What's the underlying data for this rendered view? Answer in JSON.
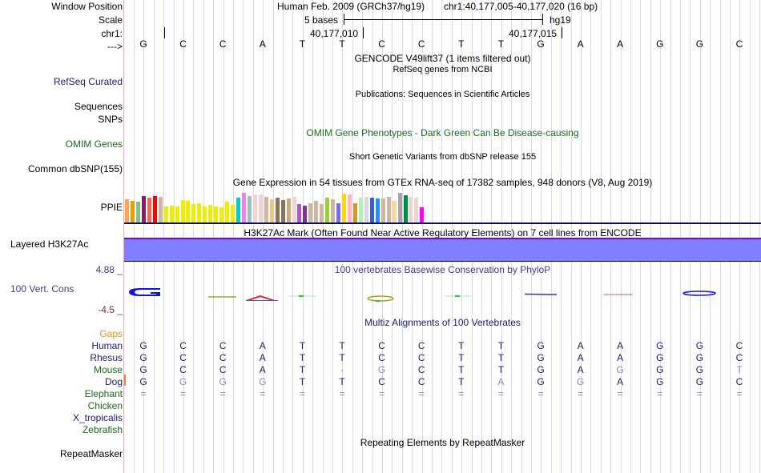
{
  "labels": {
    "window_position": "Window Position",
    "scale": "Scale",
    "chrom": "chr1:",
    "strand": "--->",
    "refseq_curated": "RefSeq Curated",
    "sequences": "Sequences",
    "snps": "SNPs",
    "omim_genes": "OMIM Genes",
    "common_dbsnp": "Common dbSNP(155)",
    "ppie": "PPIE",
    "layered_h3k27ac": "Layered H3K27Ac",
    "cons_max": "4.88 _",
    "cons_label": "100 Vert. Cons",
    "cons_min": "-4.5 _",
    "gaps": "Gaps",
    "repeatmasker": "RepeatMasker"
  },
  "header": {
    "assembly": "Human Feb. 2009 (GRCh37/hg19)",
    "position": "chr1:40,177,005-40,177,020 (16 bp)",
    "scale_text": "5 bases",
    "scale_db": "hg19",
    "coord1": "40,177,010",
    "coord2": "40,177,015"
  },
  "sequence": [
    "G",
    "C",
    "C",
    "A",
    "T",
    "T",
    "C",
    "C",
    "T",
    "T",
    "G",
    "A",
    "A",
    "G",
    "G",
    "C"
  ],
  "tracks": {
    "gencode": "GENCODE V49lift37 (1 items filtered out)",
    "refseq": "RefSeq genes from NCBI",
    "publications": "Publications: Sequences in Scientific Articles",
    "omim": "OMIM Gene Phenotypes - Dark Green Can Be Disease-causing",
    "dbsnp": "Short Genetic Variants from dbSNP release 155",
    "gtex": "Gene Expression in 54 tissues from GTEx RNA-seq of 17382 samples, 948 donors (V8, Aug 2019)",
    "h3k27ac": "H3K27Ac Mark (Often Found Near Active Regulatory Elements) on 7 cell lines from ENCODE",
    "phylop": "100 vertebrates Basewise Conservation by PhyloP",
    "multiz": "Multiz Alignments of 100 Vertebrates",
    "repeatmasker": "Repeating Elements by RepeatMasker"
  },
  "gtex_bars": [
    {
      "color": "#ffa54f",
      "level": 0.8
    },
    {
      "color": "#ee9a00",
      "level": 0.74
    },
    {
      "color": "#8fbc8f",
      "level": 0.71
    },
    {
      "color": "#8b1c62",
      "level": 0.9
    },
    {
      "color": "#ee6a50",
      "level": 0.83
    },
    {
      "color": "#ff0000",
      "level": 0.9
    },
    {
      "color": "#cdb79e",
      "level": 0.86
    },
    {
      "color": "#eeee00",
      "level": 0.55
    },
    {
      "color": "#eeee00",
      "level": 0.57
    },
    {
      "color": "#eeee00",
      "level": 0.55
    },
    {
      "color": "#eeee00",
      "level": 0.77
    },
    {
      "color": "#eeee00",
      "level": 0.74
    },
    {
      "color": "#eeee00",
      "level": 0.64
    },
    {
      "color": "#eeee00",
      "level": 0.67
    },
    {
      "color": "#eeee00",
      "level": 0.55
    },
    {
      "color": "#eeee00",
      "level": 0.6
    },
    {
      "color": "#eeee00",
      "level": 0.55
    },
    {
      "color": "#eeee00",
      "level": 0.52
    },
    {
      "color": "#eeee00",
      "level": 0.71
    },
    {
      "color": "#eeee00",
      "level": 0.6
    },
    {
      "color": "#00cdcd",
      "level": 0.83
    },
    {
      "color": "#ee82ee",
      "level": 1.0
    },
    {
      "color": "#9ac0cd",
      "level": 0.9
    },
    {
      "color": "#eed5d2",
      "level": 0.95
    },
    {
      "color": "#eed5d2",
      "level": 0.95
    },
    {
      "color": "#cdb79e",
      "level": 0.86
    },
    {
      "color": "#f4c285",
      "level": 0.8
    },
    {
      "color": "#8b7355",
      "level": 0.83
    },
    {
      "color": "#8b7355",
      "level": 0.77
    },
    {
      "color": "#cdaa7d",
      "level": 0.81
    },
    {
      "color": "#eed5d2",
      "level": 0.88
    },
    {
      "color": "#b452cd",
      "level": 0.64
    },
    {
      "color": "#7a378b",
      "level": 0.57
    },
    {
      "color": "#cdb79e",
      "level": 0.67
    },
    {
      "color": "#cdb79e",
      "level": 0.74
    },
    {
      "color": "#cdb79e",
      "level": 0.64
    },
    {
      "color": "#9acd32",
      "level": 0.83
    },
    {
      "color": "#cdb79e",
      "level": 0.78
    },
    {
      "color": "#7b68ee",
      "level": 0.67
    },
    {
      "color": "#ffd700",
      "level": 0.97
    },
    {
      "color": "#ffb6c1",
      "level": 0.95
    },
    {
      "color": "#cd9b1d",
      "level": 0.67
    },
    {
      "color": "#b4eeb4",
      "level": 0.83
    },
    {
      "color": "#d9d9d9",
      "level": 0.86
    },
    {
      "color": "#3a5fcd",
      "level": 0.84
    },
    {
      "color": "#1e90ff",
      "level": 0.81
    },
    {
      "color": "#cdb79e",
      "level": 0.81
    },
    {
      "color": "#cdb79e",
      "level": 0.86
    },
    {
      "color": "#ffd39b",
      "level": 0.74
    },
    {
      "color": "#a6a6a6",
      "level": 1.0
    },
    {
      "color": "#008b45",
      "level": 0.91
    },
    {
      "color": "#eed5d2",
      "level": 0.88
    },
    {
      "color": "#eed5d2",
      "level": 0.84
    },
    {
      "color": "#ff00ff",
      "level": 0.52
    }
  ],
  "alignment": {
    "rows": [
      {
        "species": "Human",
        "color": "navy",
        "bases": [
          "G",
          "C",
          "C",
          "A",
          "T",
          "T",
          "C",
          "C",
          "T",
          "T",
          "G",
          "A",
          "A",
          "G",
          "G",
          "C"
        ],
        "dim": []
      },
      {
        "species": "Rhesus",
        "color": "navy",
        "bases": [
          "G",
          "C",
          "C",
          "A",
          "T",
          "T",
          "C",
          "C",
          "T",
          "T",
          "G",
          "A",
          "A",
          "G",
          "G",
          "C"
        ],
        "dim": []
      },
      {
        "species": "Mouse",
        "color": "green",
        "bases": [
          "G",
          "C",
          "C",
          "A",
          "T",
          "-",
          "G",
          "C",
          "T",
          "T",
          "G",
          "A",
          "G",
          "G",
          "G",
          "T"
        ],
        "dim": [
          5,
          6,
          12,
          15
        ]
      },
      {
        "species": "Dog",
        "color": "navy",
        "bases": [
          "G",
          "G",
          "G",
          "G",
          "T",
          "T",
          "C",
          "C",
          "T",
          "A",
          "G",
          "G",
          "A",
          "G",
          "G",
          "C"
        ],
        "dim": [
          1,
          2,
          3,
          9,
          11
        ]
      },
      {
        "species": "Elephant",
        "color": "green",
        "bases": [
          "=",
          "=",
          "=",
          "=",
          "=",
          "=",
          "=",
          "=",
          "=",
          "=",
          "=",
          "=",
          "=",
          "=",
          "=",
          "="
        ],
        "dim": "all"
      },
      {
        "species": "Chicken",
        "color": "green",
        "bases": [],
        "dim": []
      },
      {
        "species": "X_tropicalis",
        "color": "navy",
        "bases": [],
        "dim": []
      },
      {
        "species": "Zebrafish",
        "color": "green",
        "bases": [],
        "dim": []
      }
    ]
  },
  "colors": {
    "navy": "#1c1c6c",
    "green": "#1a6b1a",
    "dim": "#8a8aaa",
    "cons_max": "#3c3c8c",
    "cons_min": "#8c2c2c",
    "h3k27ac_fill": "#8080ff"
  }
}
